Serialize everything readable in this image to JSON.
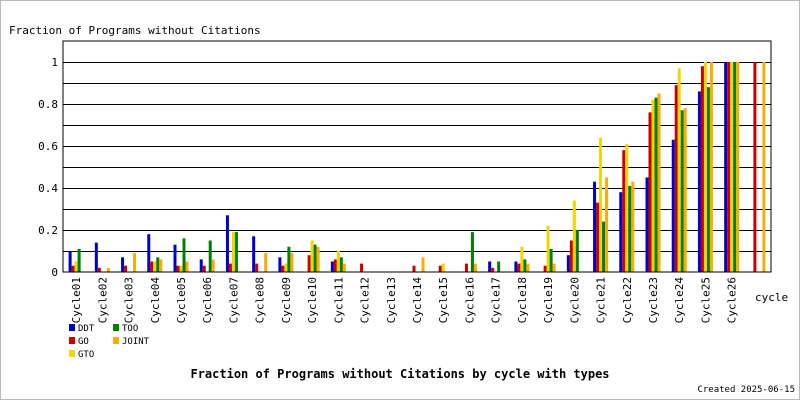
{
  "chart_data": {
    "type": "bar",
    "title": "Fraction of Programs without Citations by cycle with types",
    "ylabel": "Fraction of Programs without Citations",
    "xlabel": "cycle",
    "footer": "Created 2025-06-15",
    "ylim": [
      0,
      1.1
    ],
    "yticks": [
      0,
      0.2,
      0.4,
      0.6,
      0.8,
      1
    ],
    "grid": true,
    "legend_position": "bottom-left",
    "categories": [
      "Cycle01",
      "Cycle02",
      "Cycle03",
      "Cycle04",
      "Cycle05",
      "Cycle06",
      "Cycle07",
      "Cycle08",
      "Cycle09",
      "Cycle10",
      "Cycle11",
      "Cycle12",
      "Cycle13",
      "Cycle14",
      "Cycle15",
      "Cycle16",
      "Cycle17",
      "Cycle18",
      "Cycle19",
      "Cycle20",
      "Cycle21",
      "Cycle22",
      "Cycle23",
      "Cycle24",
      "Cycle25",
      "Cycle26",
      ""
    ],
    "series": [
      {
        "name": "DDT",
        "color": "#0000cc",
        "values": [
          0.1,
          0.14,
          0.07,
          0.18,
          0.13,
          0.06,
          0.27,
          0.17,
          0.07,
          0.0,
          0.05,
          0.0,
          0.0,
          0.0,
          0.0,
          0.0,
          0.05,
          0.05,
          0.0,
          0.08,
          0.43,
          0.38,
          0.45,
          0.63,
          0.86,
          1.0,
          null
        ]
      },
      {
        "name": "GO",
        "color": "#cc0000",
        "values": [
          0.03,
          0.02,
          0.03,
          0.05,
          0.03,
          0.03,
          0.04,
          0.04,
          0.03,
          0.08,
          0.06,
          0.04,
          0.0,
          0.03,
          0.03,
          0.04,
          0.02,
          0.04,
          0.03,
          0.15,
          0.33,
          0.58,
          0.76,
          0.89,
          0.98,
          1.0,
          1.0
        ]
      },
      {
        "name": "GTO",
        "color": "#f2d600",
        "values": [
          0.05,
          0.0,
          0.0,
          0.05,
          0.03,
          0.0,
          0.19,
          0.0,
          0.04,
          0.15,
          0.1,
          0.0,
          0.0,
          0.0,
          0.04,
          0.0,
          0.0,
          0.12,
          0.22,
          0.34,
          0.64,
          0.61,
          0.82,
          0.97,
          1.0,
          1.0,
          null
        ]
      },
      {
        "name": "TOO",
        "color": "#008000",
        "values": [
          0.11,
          0.0,
          0.0,
          0.07,
          0.16,
          0.15,
          0.19,
          0.0,
          0.12,
          0.13,
          0.07,
          0.0,
          0.0,
          0.0,
          0.0,
          0.19,
          0.05,
          0.06,
          0.11,
          0.2,
          0.24,
          0.41,
          0.83,
          0.77,
          0.88,
          1.0,
          null
        ]
      },
      {
        "name": "JOINT",
        "color": "#ffaa00",
        "values": [
          0.0,
          0.02,
          0.09,
          0.06,
          0.05,
          0.06,
          0.0,
          0.09,
          0.09,
          0.12,
          0.04,
          0.0,
          0.0,
          0.07,
          0.0,
          0.04,
          0.0,
          0.04,
          0.04,
          0.0,
          0.45,
          0.43,
          0.85,
          0.78,
          1.0,
          1.0,
          1.0
        ]
      }
    ]
  }
}
